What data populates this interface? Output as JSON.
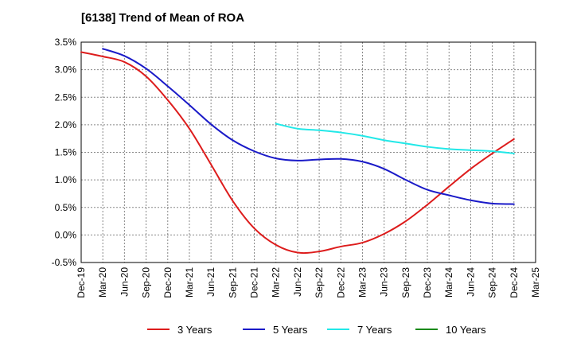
{
  "chart_data": {
    "type": "line",
    "title": "[6138]  Trend of Mean of ROA",
    "xlabel": "",
    "ylabel": "",
    "ylim": [
      -0.5,
      3.5
    ],
    "y_ticks": [
      "3.5%",
      "3.0%",
      "2.5%",
      "2.0%",
      "1.5%",
      "1.0%",
      "0.5%",
      "0.0%",
      "-0.5%"
    ],
    "y_tick_values": [
      3.5,
      3.0,
      2.5,
      2.0,
      1.5,
      1.0,
      0.5,
      0.0,
      -0.5
    ],
    "categories": [
      "Dec-19",
      "Mar-20",
      "Jun-20",
      "Sep-20",
      "Dec-20",
      "Mar-21",
      "Jun-21",
      "Sep-21",
      "Dec-21",
      "Mar-22",
      "Jun-22",
      "Sep-22",
      "Dec-22",
      "Mar-23",
      "Jun-23",
      "Sep-23",
      "Dec-23",
      "Mar-24",
      "Jun-24",
      "Sep-24",
      "Dec-24",
      "Mar-25"
    ],
    "grid": true,
    "legend_position": "bottom",
    "series": [
      {
        "name": "3 Years",
        "color": "#dd1c1c",
        "values": [
          3.32,
          3.24,
          3.14,
          2.88,
          2.45,
          1.93,
          1.28,
          0.62,
          0.12,
          -0.18,
          -0.32,
          -0.3,
          -0.21,
          -0.14,
          0.02,
          0.25,
          0.55,
          0.88,
          1.2,
          1.48,
          1.74,
          null
        ]
      },
      {
        "name": "5 Years",
        "color": "#1a1ac8",
        "values": [
          null,
          3.38,
          3.25,
          3.02,
          2.7,
          2.36,
          2.01,
          1.72,
          1.52,
          1.39,
          1.35,
          1.37,
          1.38,
          1.33,
          1.2,
          1.0,
          0.82,
          0.72,
          0.63,
          0.57,
          0.56,
          null
        ]
      },
      {
        "name": "7 Years",
        "color": "#22e8e8",
        "values": [
          null,
          null,
          null,
          null,
          null,
          null,
          null,
          null,
          null,
          2.02,
          1.93,
          1.9,
          1.86,
          1.8,
          1.72,
          1.66,
          1.6,
          1.56,
          1.54,
          1.52,
          1.48,
          null
        ]
      },
      {
        "name": "10 Years",
        "color": "#1a8a1a",
        "values": [
          null,
          null,
          null,
          null,
          null,
          null,
          null,
          null,
          null,
          null,
          null,
          null,
          null,
          null,
          null,
          null,
          null,
          null,
          null,
          null,
          null,
          null
        ]
      }
    ]
  }
}
